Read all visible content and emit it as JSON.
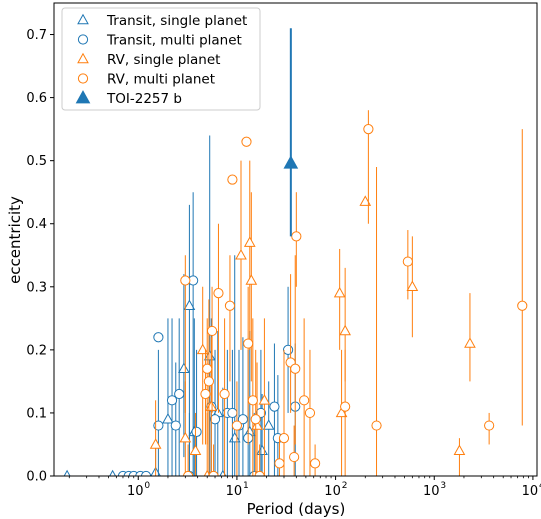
{
  "chart_data": {
    "type": "scatter",
    "xlabel": "Period (days)",
    "ylabel": "eccentricity",
    "xscale": "log",
    "xlim": [
      0.14,
      11000
    ],
    "ylim": [
      0,
      0.75
    ],
    "x_ticks": [
      {
        "value": 1,
        "base": "10",
        "exp": "0"
      },
      {
        "value": 10,
        "base": "10",
        "exp": "1"
      },
      {
        "value": 100,
        "base": "10",
        "exp": "2"
      },
      {
        "value": 1000,
        "base": "10",
        "exp": "3"
      },
      {
        "value": 10000,
        "base": "10",
        "exp": "4"
      }
    ],
    "y_ticks": [
      "0.0",
      "0.1",
      "0.2",
      "0.3",
      "0.4",
      "0.5",
      "0.6",
      "0.7"
    ],
    "legend_position": "top-left",
    "colors": {
      "transit": "#1f77b4",
      "rv": "#ff7f0e"
    },
    "series": [
      {
        "name": "Transit, single planet",
        "marker": "triangle-open",
        "color": "#1f77b4",
        "points": [
          {
            "x": 0.19,
            "y": 0.0,
            "lo": 0.0,
            "hi": 0.0
          },
          {
            "x": 0.55,
            "y": 0.0,
            "lo": 0.0,
            "hi": 0.0
          },
          {
            "x": 1.5,
            "y": 0.005,
            "lo": 0.0,
            "hi": 0.05
          },
          {
            "x": 2.0,
            "y": 0.09,
            "lo": 0.0,
            "hi": 0.25
          },
          {
            "x": 2.9,
            "y": 0.17,
            "lo": 0.03,
            "hi": 0.32
          },
          {
            "x": 3.3,
            "y": 0.27,
            "lo": 0.0,
            "hi": 0.43
          },
          {
            "x": 3.7,
            "y": 0.07,
            "lo": 0.0,
            "hi": 0.25
          },
          {
            "x": 5.3,
            "y": 0.19,
            "lo": 0.0,
            "hi": 0.54
          },
          {
            "x": 6.4,
            "y": 0.1,
            "lo": 0.0,
            "hi": 0.23
          },
          {
            "x": 7.2,
            "y": 0.0,
            "lo": 0.0,
            "hi": 0.14
          },
          {
            "x": 9.5,
            "y": 0.06,
            "lo": 0.0,
            "hi": 0.35
          },
          {
            "x": 13.5,
            "y": 0.07,
            "lo": 0.0,
            "hi": 0.23
          },
          {
            "x": 18.0,
            "y": 0.04,
            "lo": 0.0,
            "hi": 0.13
          },
          {
            "x": 21.0,
            "y": 0.08,
            "lo": 0.0,
            "hi": 0.15
          }
        ]
      },
      {
        "name": "Transit, multi planet",
        "marker": "circle-open",
        "color": "#1f77b4",
        "points": [
          {
            "x": 0.7,
            "y": 0.0,
            "lo": 0.0,
            "hi": 0.0
          },
          {
            "x": 0.8,
            "y": 0.0,
            "lo": 0.0,
            "hi": 0.0
          },
          {
            "x": 0.9,
            "y": 0.0,
            "lo": 0.0,
            "hi": 0.0
          },
          {
            "x": 1.05,
            "y": 0.0,
            "lo": 0.0,
            "hi": 0.0
          },
          {
            "x": 1.2,
            "y": 0.0,
            "lo": 0.0,
            "hi": 0.0
          },
          {
            "x": 1.6,
            "y": 0.08,
            "lo": 0.0,
            "hi": 0.2
          },
          {
            "x": 1.6,
            "y": 0.22,
            "lo": 0.22,
            "hi": 0.22
          },
          {
            "x": 2.2,
            "y": 0.12,
            "lo": 0.0,
            "hi": 0.25
          },
          {
            "x": 2.4,
            "y": 0.08,
            "lo": 0.0,
            "hi": 0.18
          },
          {
            "x": 2.6,
            "y": 0.13,
            "lo": 0.0,
            "hi": 0.25
          },
          {
            "x": 3.3,
            "y": 0.0,
            "lo": 0.0,
            "hi": 0.1
          },
          {
            "x": 3.6,
            "y": 0.31,
            "lo": 0.0,
            "hi": 0.45
          },
          {
            "x": 3.9,
            "y": 0.07,
            "lo": 0.0,
            "hi": 0.2
          },
          {
            "x": 5.5,
            "y": 0.11,
            "lo": 0.0,
            "hi": 0.25
          },
          {
            "x": 6.0,
            "y": 0.09,
            "lo": 0.0,
            "hi": 0.2
          },
          {
            "x": 8.0,
            "y": 0.1,
            "lo": 0.0,
            "hi": 0.2
          },
          {
            "x": 9.0,
            "y": 0.1,
            "lo": 0.0,
            "hi": 0.2
          },
          {
            "x": 10.5,
            "y": 0.08,
            "lo": 0.0,
            "hi": 0.2
          },
          {
            "x": 11.5,
            "y": 0.09,
            "lo": 0.0,
            "hi": 0.22
          },
          {
            "x": 13.0,
            "y": 0.06,
            "lo": 0.0,
            "hi": 0.2
          },
          {
            "x": 15.0,
            "y": 0.0,
            "lo": 0.0,
            "hi": 0.1
          },
          {
            "x": 17.5,
            "y": 0.1,
            "lo": 0.0,
            "hi": 0.2
          },
          {
            "x": 24.0,
            "y": 0.11,
            "lo": 0.0,
            "hi": 0.21
          },
          {
            "x": 26.0,
            "y": 0.06,
            "lo": 0.0,
            "hi": 0.16
          },
          {
            "x": 33.0,
            "y": 0.2,
            "lo": 0.1,
            "hi": 0.3
          },
          {
            "x": 39.0,
            "y": 0.11,
            "lo": 0.0,
            "hi": 0.21
          }
        ]
      },
      {
        "name": "RV, single planet",
        "marker": "triangle-open",
        "color": "#ff7f0e",
        "points": [
          {
            "x": 1.5,
            "y": 0.05,
            "lo": 0.0,
            "hi": 0.12
          },
          {
            "x": 3.0,
            "y": 0.06,
            "lo": 0.0,
            "hi": 0.15
          },
          {
            "x": 3.8,
            "y": 0.04,
            "lo": 0.0,
            "hi": 0.1
          },
          {
            "x": 4.5,
            "y": 0.2,
            "lo": 0.05,
            "hi": 0.3
          },
          {
            "x": 5.0,
            "y": 0.0,
            "lo": 0.0,
            "hi": 0.1
          },
          {
            "x": 5.5,
            "y": 0.11,
            "lo": 0.0,
            "hi": 0.22
          },
          {
            "x": 11.0,
            "y": 0.35,
            "lo": 0.2,
            "hi": 0.5
          },
          {
            "x": 13.5,
            "y": 0.37,
            "lo": 0.2,
            "hi": 0.5
          },
          {
            "x": 14.0,
            "y": 0.31,
            "lo": 0.15,
            "hi": 0.45
          },
          {
            "x": 16.0,
            "y": 0.08,
            "lo": 0.0,
            "hi": 0.18
          },
          {
            "x": 19.0,
            "y": 0.12,
            "lo": 0.0,
            "hi": 0.25
          },
          {
            "x": 110.0,
            "y": 0.29,
            "lo": 0.2,
            "hi": 0.36
          },
          {
            "x": 115.0,
            "y": 0.1,
            "lo": 0.0,
            "hi": 0.2
          },
          {
            "x": 125.0,
            "y": 0.23,
            "lo": 0.15,
            "hi": 0.33
          },
          {
            "x": 200.0,
            "y": 0.435,
            "lo": 0.435,
            "hi": 0.435
          },
          {
            "x": 600.0,
            "y": 0.3,
            "lo": 0.22,
            "hi": 0.38
          },
          {
            "x": 1800.0,
            "y": 0.04,
            "lo": 0.0,
            "hi": 0.06
          },
          {
            "x": 2300.0,
            "y": 0.21,
            "lo": 0.15,
            "hi": 0.29
          }
        ]
      },
      {
        "name": "RV, multi planet",
        "marker": "circle-open",
        "color": "#ff7f0e",
        "points": [
          {
            "x": 3.0,
            "y": 0.31,
            "lo": 0.1,
            "hi": 0.35
          },
          {
            "x": 3.2,
            "y": 0.0,
            "lo": 0.0,
            "hi": 0.05
          },
          {
            "x": 4.8,
            "y": 0.13,
            "lo": 0.05,
            "hi": 0.2
          },
          {
            "x": 5.0,
            "y": 0.17,
            "lo": 0.05,
            "hi": 0.25
          },
          {
            "x": 5.2,
            "y": 0.15,
            "lo": 0.0,
            "hi": 0.28
          },
          {
            "x": 5.6,
            "y": 0.23,
            "lo": 0.1,
            "hi": 0.3
          },
          {
            "x": 5.8,
            "y": 0.0,
            "lo": 0.0,
            "hi": 0.05
          },
          {
            "x": 6.5,
            "y": 0.29,
            "lo": 0.1,
            "hi": 0.4
          },
          {
            "x": 7.5,
            "y": 0.13,
            "lo": 0.0,
            "hi": 0.25
          },
          {
            "x": 8.5,
            "y": 0.27,
            "lo": 0.15,
            "hi": 0.35
          },
          {
            "x": 9.0,
            "y": 0.47,
            "lo": 0.47,
            "hi": 0.47
          },
          {
            "x": 10.0,
            "y": 0.08,
            "lo": 0.0,
            "hi": 0.15
          },
          {
            "x": 12.5,
            "y": 0.53,
            "lo": 0.53,
            "hi": 0.53
          },
          {
            "x": 13.0,
            "y": 0.21,
            "lo": 0.05,
            "hi": 0.3
          },
          {
            "x": 14.5,
            "y": 0.12,
            "lo": 0.0,
            "hi": 0.25
          },
          {
            "x": 15.5,
            "y": 0.09,
            "lo": 0.0,
            "hi": 0.2
          },
          {
            "x": 17.0,
            "y": 0.0,
            "lo": 0.0,
            "hi": 0.05
          },
          {
            "x": 27.0,
            "y": 0.02,
            "lo": 0.0,
            "hi": 0.06
          },
          {
            "x": 30.0,
            "y": 0.06,
            "lo": 0.0,
            "hi": 0.2
          },
          {
            "x": 35.0,
            "y": 0.18,
            "lo": 0.1,
            "hi": 0.32
          },
          {
            "x": 38.0,
            "y": 0.03,
            "lo": 0.0,
            "hi": 0.08
          },
          {
            "x": 39.0,
            "y": 0.17,
            "lo": 0.05,
            "hi": 0.35
          },
          {
            "x": 40.0,
            "y": 0.38,
            "lo": 0.3,
            "hi": 0.45
          },
          {
            "x": 48.0,
            "y": 0.12,
            "lo": 0.0,
            "hi": 0.25
          },
          {
            "x": 55.0,
            "y": 0.1,
            "lo": 0.0,
            "hi": 0.2
          },
          {
            "x": 62.0,
            "y": 0.02,
            "lo": 0.0,
            "hi": 0.05
          },
          {
            "x": 125.0,
            "y": 0.11,
            "lo": 0.0,
            "hi": 0.2
          },
          {
            "x": 215.0,
            "y": 0.55,
            "lo": 0.4,
            "hi": 0.58
          },
          {
            "x": 260.0,
            "y": 0.08,
            "lo": 0.0,
            "hi": 0.49
          },
          {
            "x": 540.0,
            "y": 0.34,
            "lo": 0.28,
            "hi": 0.39
          },
          {
            "x": 3600.0,
            "y": 0.08,
            "lo": 0.05,
            "hi": 0.1
          },
          {
            "x": 7800.0,
            "y": 0.27,
            "lo": 0.08,
            "hi": 0.55
          }
        ]
      },
      {
        "name": "TOI-2257 b",
        "marker": "triangle-filled",
        "color": "#1f77b4",
        "points": [
          {
            "x": 35.2,
            "y": 0.496,
            "lo": 0.38,
            "hi": 0.71
          }
        ]
      }
    ]
  }
}
